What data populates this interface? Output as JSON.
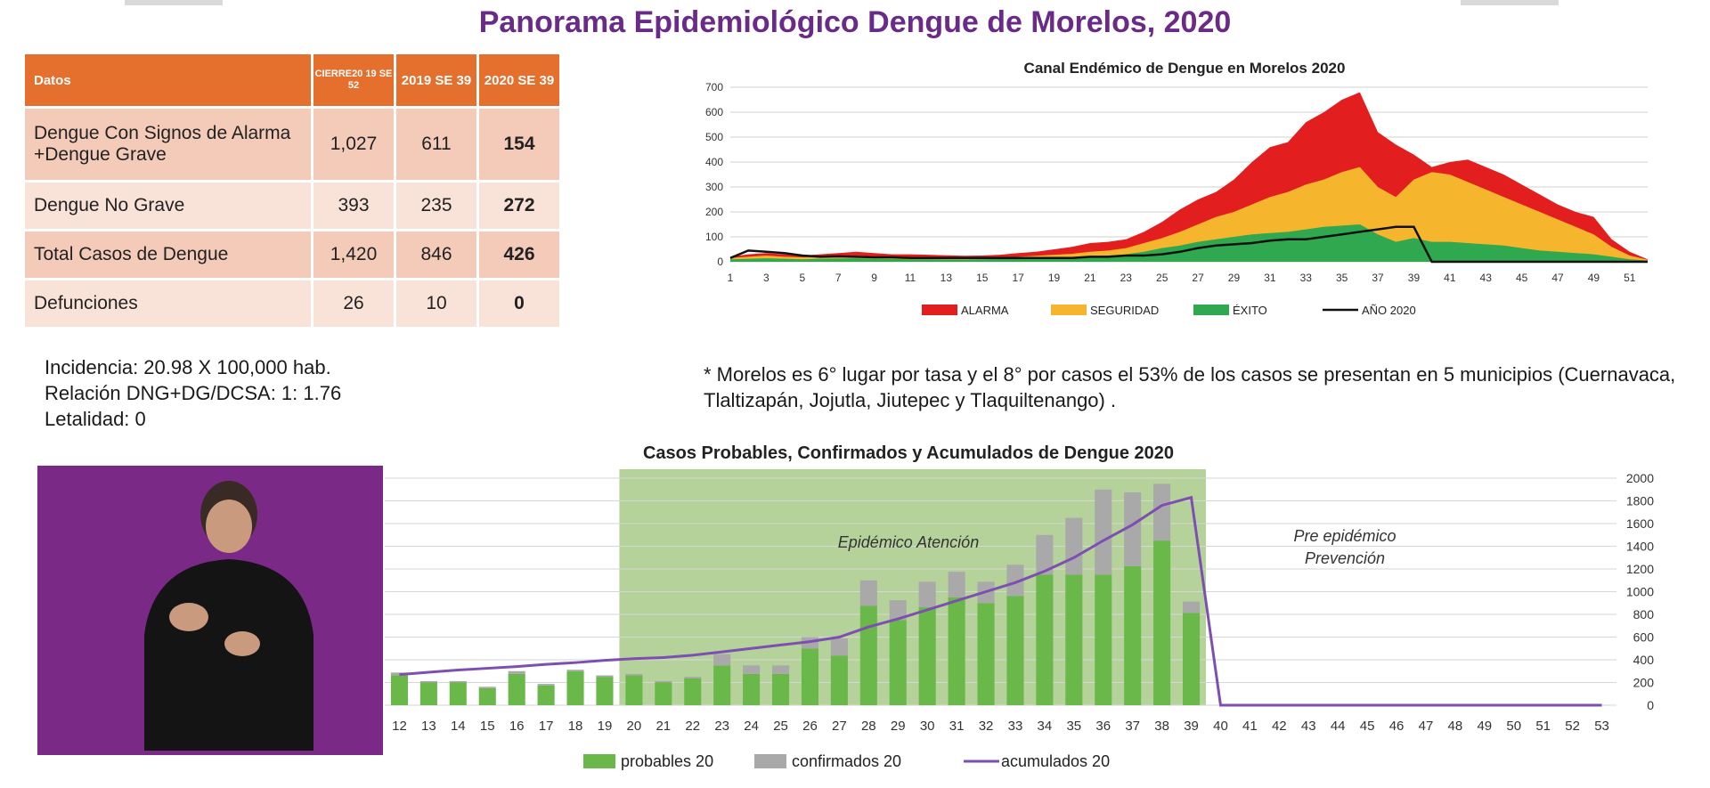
{
  "title": "Panorama Epidemiológico Dengue de Morelos, 2020",
  "table": {
    "headers": [
      "Datos",
      "CIERRE20 19 SE 52",
      "2019 SE 39",
      "2020 SE 39"
    ],
    "rows": [
      {
        "label": "Dengue Con Signos de Alarma +Dengue Grave",
        "c1": "1,027",
        "c2": "611",
        "c3": "154"
      },
      {
        "label": "Dengue No Grave",
        "c1": "393",
        "c2": "235",
        "c3": "272"
      },
      {
        "label": "Total  Casos de Dengue",
        "c1": "1,420",
        "c2": "846",
        "c3": "426"
      },
      {
        "label": "Defunciones",
        "c1": "26",
        "c2": "10",
        "c3": "0"
      }
    ]
  },
  "info": {
    "line1": "Incidencia: 20.98 X 100,000 hab.",
    "line2": "Relación DNG+DG/DCSA: 1: 1.76",
    "line3": "Letalidad: 0"
  },
  "note": "* Morelos es 6° lugar por tasa y el  8° por casos  el 53% de los casos se presentan en 5 municipios (Cuernavaca, Tlaltizapán, Jojutla, Jiutepec y  Tlaquiltenango) .",
  "colors": {
    "alarma": "#e21e1e",
    "seguridad": "#f5b52d",
    "exito": "#2fa84f",
    "ano": "#111111",
    "probables": "#6bb84a",
    "confirmados": "#a9a9a9",
    "acumulados": "#7d4fb0",
    "zone": "#b5d29a",
    "header": "#e56f2d"
  },
  "chart_data": [
    {
      "type": "area",
      "title": "Canal Endémico de Dengue en Morelos 2020",
      "x": [
        1,
        2,
        3,
        4,
        5,
        6,
        7,
        8,
        9,
        10,
        11,
        12,
        13,
        14,
        15,
        16,
        17,
        18,
        19,
        20,
        21,
        22,
        23,
        24,
        25,
        26,
        27,
        28,
        29,
        30,
        31,
        32,
        33,
        34,
        35,
        36,
        37,
        38,
        39,
        40,
        41,
        42,
        43,
        44,
        45,
        46,
        47,
        48,
        49,
        50,
        51,
        52
      ],
      "xticks": [
        1,
        3,
        5,
        7,
        9,
        11,
        13,
        15,
        17,
        19,
        21,
        23,
        25,
        27,
        29,
        31,
        33,
        35,
        37,
        39,
        41,
        43,
        45,
        47,
        49,
        51
      ],
      "ylim": [
        0,
        700
      ],
      "yticks": [
        0,
        100,
        200,
        300,
        400,
        500,
        600,
        700
      ],
      "grid": true,
      "legend_position": "bottom",
      "series": [
        {
          "name": "ALARMA",
          "values": [
            20,
            30,
            35,
            30,
            25,
            30,
            35,
            40,
            35,
            30,
            30,
            28,
            26,
            24,
            25,
            28,
            35,
            40,
            50,
            60,
            75,
            80,
            90,
            120,
            160,
            210,
            250,
            280,
            330,
            400,
            460,
            480,
            560,
            600,
            650,
            680,
            520,
            470,
            430,
            380,
            400,
            410,
            380,
            350,
            310,
            270,
            230,
            200,
            180,
            90,
            40,
            10
          ]
        },
        {
          "name": "SEGURIDAD",
          "values": [
            15,
            20,
            25,
            20,
            18,
            20,
            22,
            25,
            22,
            20,
            18,
            17,
            15,
            14,
            15,
            17,
            20,
            24,
            28,
            32,
            40,
            45,
            55,
            75,
            95,
            120,
            150,
            180,
            200,
            230,
            260,
            280,
            310,
            330,
            360,
            380,
            300,
            260,
            330,
            360,
            350,
            320,
            290,
            260,
            230,
            200,
            170,
            140,
            110,
            60,
            25,
            8
          ]
        },
        {
          "name": "ÉXITO",
          "values": [
            10,
            12,
            14,
            12,
            10,
            12,
            13,
            14,
            12,
            11,
            10,
            10,
            9,
            9,
            10,
            11,
            12,
            14,
            16,
            18,
            22,
            25,
            30,
            40,
            55,
            65,
            80,
            90,
            100,
            110,
            115,
            120,
            130,
            140,
            145,
            150,
            110,
            80,
            95,
            80,
            80,
            75,
            70,
            65,
            55,
            45,
            40,
            35,
            30,
            20,
            10,
            5
          ]
        },
        {
          "name": "AÑO 2020",
          "values": [
            15,
            45,
            40,
            35,
            25,
            20,
            22,
            20,
            18,
            18,
            15,
            15,
            15,
            15,
            15,
            15,
            15,
            15,
            15,
            15,
            20,
            20,
            25,
            25,
            30,
            40,
            55,
            65,
            70,
            75,
            85,
            90,
            90,
            100,
            110,
            120,
            130,
            140,
            140,
            0,
            0,
            0,
            0,
            0,
            0,
            0,
            0,
            0,
            0,
            0,
            0,
            0
          ]
        }
      ]
    },
    {
      "type": "bar",
      "title": "Casos Probables,  Confirmados y Acumulados de Dengue 2020",
      "categories": [
        "12",
        "13",
        "14",
        "15",
        "16",
        "17",
        "18",
        "19",
        "20",
        "21",
        "22",
        "23",
        "24",
        "25",
        "26",
        "27",
        "28",
        "29",
        "30",
        "31",
        "32",
        "33",
        "34",
        "35",
        "36",
        "37",
        "38",
        "39",
        "40",
        "41",
        "42",
        "43",
        "44",
        "45",
        "46",
        "47",
        "48",
        "49",
        "50",
        "51",
        "52",
        "53"
      ],
      "y2lim": [
        0,
        2000
      ],
      "y2ticks": [
        0,
        200,
        400,
        600,
        800,
        1000,
        1200,
        1400,
        1600,
        1800,
        2000
      ],
      "annotations": [
        "Epidémico Atención",
        "Pre epidémico",
        "Prevención"
      ],
      "epidemic_zone": [
        "20",
        "40"
      ],
      "legend_position": "bottom",
      "series": [
        {
          "name": "probables 20",
          "axis": "left",
          "values": [
            21,
            16,
            16,
            12,
            22,
            14,
            24,
            20,
            21,
            16,
            19,
            28,
            22,
            22,
            40,
            35,
            70,
            60,
            69,
            76,
            72,
            77,
            92,
            92,
            92,
            98,
            116,
            65,
            0,
            0,
            0,
            0,
            0,
            0,
            0,
            0,
            0,
            0,
            0,
            0,
            0,
            0
          ]
        },
        {
          "name": "confirmados 20",
          "axis": "left",
          "values": [
            2,
            1,
            1,
            1,
            2,
            1,
            1,
            1,
            1,
            1,
            1,
            8,
            6,
            6,
            8,
            12,
            18,
            14,
            18,
            18,
            15,
            22,
            28,
            40,
            60,
            52,
            40,
            8,
            0,
            0,
            0,
            0,
            0,
            0,
            0,
            0,
            0,
            0,
            0,
            0,
            0,
            0
          ]
        },
        {
          "name": "acumulados 20",
          "axis": "right",
          "values": [
            270,
            290,
            310,
            325,
            340,
            360,
            375,
            395,
            410,
            420,
            440,
            470,
            500,
            530,
            560,
            600,
            690,
            760,
            840,
            920,
            1000,
            1080,
            1180,
            1300,
            1450,
            1590,
            1760,
            1830,
            0,
            0,
            0,
            0,
            0,
            0,
            0,
            0,
            0,
            0,
            0,
            0,
            0,
            0
          ]
        }
      ]
    }
  ]
}
